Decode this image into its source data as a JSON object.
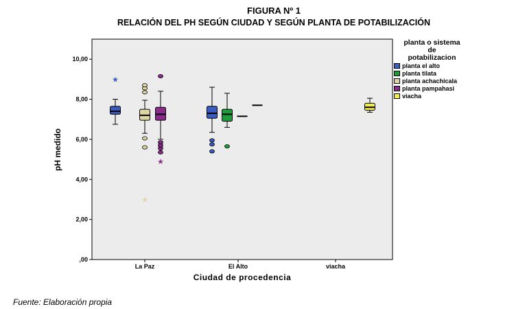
{
  "figure_label": "FIGURA Nº 1",
  "footer": "Fuente: Elaboración propia",
  "chart_data": {
    "type": "boxplot",
    "title": "RELACIÓN DEL PH SEGÚN CIUDAD Y SEGÚN PLANTA DE POTABILIZACIÓN",
    "xlabel": "Ciudad de procedencia",
    "ylabel": "pH medido",
    "ylim": [
      0,
      11
    ],
    "yticks": [
      0,
      2,
      4,
      6,
      8,
      10
    ],
    "ytick_labels": [
      ",00",
      "2,00",
      "4,00",
      "6,00",
      "8,00",
      "10,00"
    ],
    "categories": [
      "La Paz",
      "El Alto",
      "viacha"
    ],
    "legend_title": [
      "planta o sistema",
      "de",
      "potabilizacion"
    ],
    "series": [
      {
        "name": "planta el alto",
        "color": "#3a5bbf"
      },
      {
        "name": "planta tilata",
        "color": "#1e9c3c"
      },
      {
        "name": "planta achachicala",
        "color": "#dcd6a4"
      },
      {
        "name": "planta pampahasi",
        "color": "#8c2a8c"
      },
      {
        "name": "viacha",
        "color": "#f5ee4a"
      }
    ],
    "boxes": [
      {
        "category": "La Paz",
        "series": "planta el alto",
        "min": 6.75,
        "q1": 7.25,
        "median": 7.4,
        "q3": 7.65,
        "max": 8.0,
        "outliers": [],
        "extremes": [
          9.0
        ]
      },
      {
        "category": "La Paz",
        "series": "planta achachicala",
        "min": 6.3,
        "q1": 6.95,
        "median": 7.2,
        "q3": 7.5,
        "max": 7.95,
        "outliers": [
          5.6,
          6.05,
          8.35,
          8.55,
          8.7
        ],
        "extremes": [
          3.0
        ]
      },
      {
        "category": "La Paz",
        "series": "planta pampahasi",
        "min": 6.0,
        "q1": 6.95,
        "median": 7.25,
        "q3": 7.6,
        "max": 8.4,
        "outliers": [
          5.35,
          5.55,
          5.7,
          5.85,
          9.15
        ],
        "extremes": [
          4.9
        ]
      },
      {
        "category": "El Alto",
        "series": "planta el alto",
        "min": 6.35,
        "q1": 7.05,
        "median": 7.3,
        "q3": 7.65,
        "max": 8.6,
        "outliers": [
          5.4,
          5.75,
          5.95
        ],
        "extremes": []
      },
      {
        "category": "El Alto",
        "series": "planta tilata",
        "min": 6.6,
        "q1": 6.9,
        "median": 7.25,
        "q3": 7.5,
        "max": 8.3,
        "outliers": [
          5.65
        ],
        "extremes": []
      },
      {
        "category": "El Alto",
        "series": "planta achachicala",
        "min": 7.15,
        "q1": 7.15,
        "median": 7.15,
        "q3": 7.15,
        "max": 7.15,
        "outliers": [],
        "extremes": []
      },
      {
        "category": "El Alto",
        "series": "planta pampahasi",
        "min": 7.7,
        "q1": 7.7,
        "median": 7.7,
        "q3": 7.7,
        "max": 7.7,
        "outliers": [],
        "extremes": []
      },
      {
        "category": "viacha",
        "series": "viacha",
        "min": 7.35,
        "q1": 7.45,
        "median": 7.6,
        "q3": 7.8,
        "max": 8.05,
        "outliers": [],
        "extremes": []
      }
    ]
  }
}
